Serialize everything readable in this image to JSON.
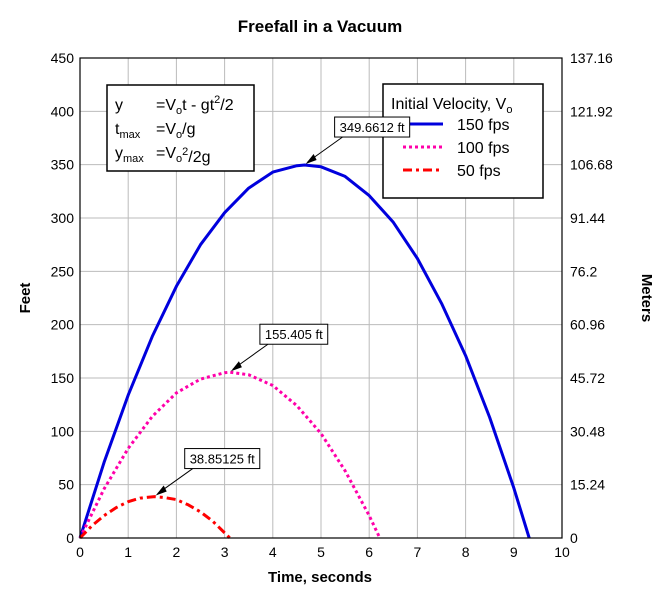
{
  "chart_data": {
    "type": "line",
    "title": "Freefall in a Vacuum",
    "xlabel": "Time, seconds",
    "ylabel": "Feet",
    "y2label": "Meters",
    "xlim": [
      0,
      10
    ],
    "ylim": [
      0,
      450
    ],
    "x_ticks": [
      "0",
      "1",
      "2",
      "3",
      "4",
      "5",
      "6",
      "7",
      "8",
      "9",
      "10"
    ],
    "y_ticks": [
      "0",
      "50",
      "100",
      "150",
      "200",
      "250",
      "300",
      "350",
      "400",
      "450"
    ],
    "y2_ticks": [
      "0",
      "15.24",
      "30.48",
      "45.72",
      "60.96",
      "76.2",
      "91.44",
      "106.68",
      "121.92",
      "137.16"
    ],
    "grid": true,
    "legend": {
      "title": "Initial Velocity, V",
      "title_sub": "o",
      "position": "top-right"
    },
    "series": [
      {
        "name": "150 fps",
        "v0": 150,
        "color": "#0000dd",
        "style": "solid",
        "x": [
          0,
          0.5,
          1,
          1.5,
          2,
          2.5,
          3,
          3.5,
          4,
          4.5,
          4.66,
          5,
          5.5,
          6,
          6.5,
          7,
          7.5,
          8,
          8.5,
          9,
          9.32
        ],
        "y": [
          0,
          71,
          134,
          189,
          236,
          275,
          305,
          328,
          343,
          349,
          349.66,
          348,
          339,
          321,
          296,
          262,
          220,
          171,
          113,
          47,
          0
        ]
      },
      {
        "name": "100 fps",
        "v0": 100,
        "color": "#ff00aa",
        "style": "dotted",
        "x": [
          0,
          0.5,
          1,
          1.5,
          2,
          2.5,
          3,
          3.11,
          3.5,
          4,
          4.5,
          5,
          5.5,
          6,
          6.22
        ],
        "y": [
          0,
          46,
          84,
          114,
          136,
          149,
          155,
          155.4,
          153,
          143,
          124,
          98,
          63,
          21,
          0
        ]
      },
      {
        "name": "50 fps",
        "v0": 50,
        "color": "#ff0000",
        "style": "dashdot",
        "x": [
          0,
          0.25,
          0.5,
          0.75,
          1,
          1.25,
          1.55,
          1.75,
          2,
          2.25,
          2.5,
          2.75,
          3.11
        ],
        "y": [
          0,
          11.5,
          21,
          28.5,
          34,
          37.4,
          38.85,
          38,
          36,
          31,
          24.5,
          15.8,
          0
        ]
      }
    ],
    "annotations": [
      {
        "text": "349.6612 ft",
        "x": 4.66,
        "y": 349.66
      },
      {
        "text": "155.405 ft",
        "x": 3.11,
        "y": 155.4
      },
      {
        "text": "38.85125 ft",
        "x": 1.55,
        "y": 38.85
      }
    ],
    "equations": [
      {
        "lhs": "y",
        "lhs_sub": "",
        "rhs_a": "=V",
        "rhs_a_sub": "o",
        "rhs_b": "t - gt",
        "rhs_b_sup": "2",
        "rhs_c": "/2"
      },
      {
        "lhs": "t",
        "lhs_sub": "max",
        "rhs_a": "=V",
        "rhs_a_sub": "o",
        "rhs_b": "/g",
        "rhs_b_sup": "",
        "rhs_c": ""
      },
      {
        "lhs": "y",
        "lhs_sub": "max",
        "rhs_a": "=V",
        "rhs_a_sub": "o",
        "rhs_b": "",
        "rhs_b_sup": "2",
        "rhs_c": "/2g"
      }
    ]
  }
}
